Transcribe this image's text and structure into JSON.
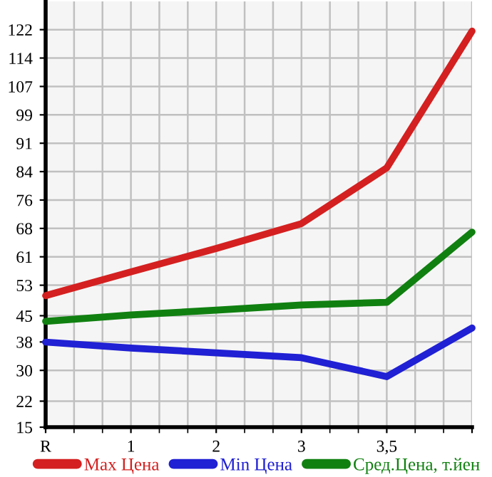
{
  "chart_data": {
    "type": "line",
    "categories": [
      "R",
      "1",
      "2",
      "3",
      "3,5",
      null
    ],
    "series": [
      {
        "name": "Max Цена",
        "color": "#d42020",
        "values": [
          50.4,
          56.8,
          63.1,
          69.8,
          84.8,
          121.6
        ]
      },
      {
        "name": "Min Цена",
        "color": "#2020d4",
        "values": [
          37.9,
          36.3,
          35.0,
          33.7,
          28.6,
          41.7
        ]
      },
      {
        "name": "Сред.Цена, т.йен",
        "color": "#108010",
        "values": [
          43.5,
          45.2,
          46.5,
          47.9,
          48.6,
          67.5
        ]
      }
    ],
    "ylim": [
      15,
      129.6
    ],
    "yticks": [
      15,
      22,
      {
        "value": 30.29,
        "label": "30"
      },
      {
        "value": 37.93,
        "label": "38"
      },
      45,
      {
        "value": 53.21,
        "label": "53"
      },
      {
        "value": 60.86,
        "label": "61"
      },
      {
        "value": 68.5,
        "label": "68"
      },
      {
        "value": 76.14,
        "label": "76"
      },
      {
        "value": 83.79,
        "label": "84"
      },
      {
        "value": 91.43,
        "label": "91"
      },
      {
        "value": 99.07,
        "label": "99"
      },
      {
        "value": 106.71,
        "label": "107"
      },
      {
        "value": 114.36,
        "label": "114"
      },
      {
        "value": 122,
        "label": "122"
      }
    ],
    "grid": true,
    "legend": "bottom",
    "marker": "none",
    "line_style": "solid"
  }
}
